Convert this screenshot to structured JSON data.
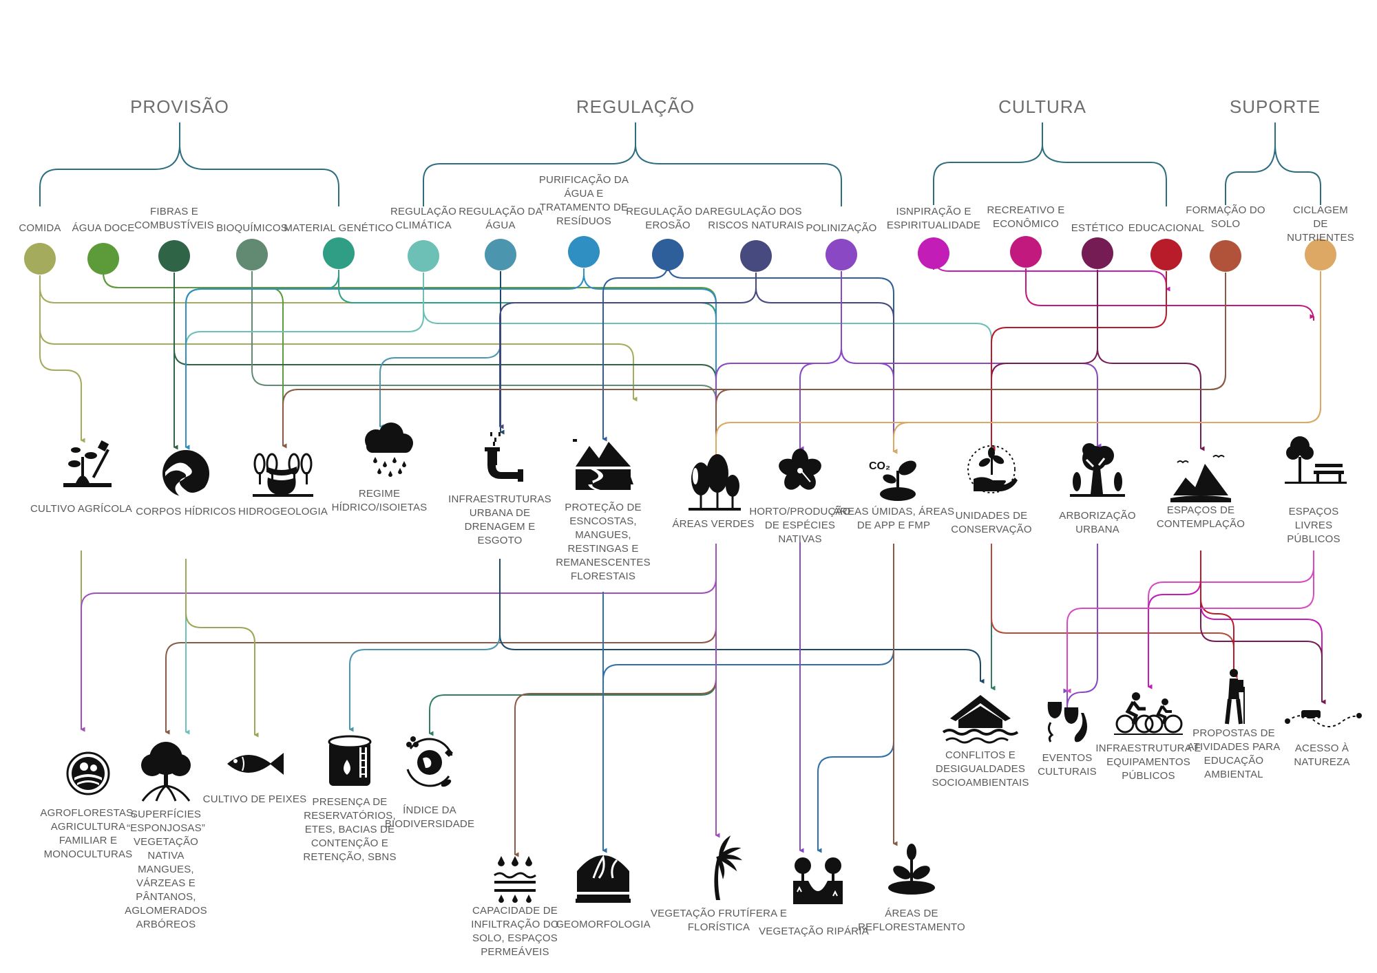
{
  "categories": {
    "provisao": "PROVISÃO",
    "regulacao": "REGULAÇÃO",
    "cultura": "CULTURA",
    "suporte": "SUPORTE"
  },
  "services": [
    {
      "id": "comida",
      "label": "COMIDA",
      "color": "#a5ab5c"
    },
    {
      "id": "agua_doce",
      "label": "ÁGUA DOCE",
      "color": "#5c9a3a"
    },
    {
      "id": "fibras",
      "label": "FIBRAS E\nCOMBUSTÍVEIS",
      "color": "#2f6447"
    },
    {
      "id": "bioquimicos",
      "label": "BIOQUÍMICOS",
      "color": "#628a73"
    },
    {
      "id": "material_genetico",
      "label": "MATERIAL GENÉTICO",
      "color": "#2f9e84"
    },
    {
      "id": "reg_climatica",
      "label": "REGULAÇÃO\nCLIMÁTICA",
      "color": "#6dc0b5"
    },
    {
      "id": "reg_agua",
      "label": "REGULAÇÃO DA\nÁGUA",
      "color": "#4b96ae"
    },
    {
      "id": "purificacao",
      "label": "PURIFICAÇÃO DA\nÁGUA E\nTRATAMENTO DE\nRESÍDUOS",
      "color": "#2f8ec2"
    },
    {
      "id": "reg_erosao",
      "label": "REGULAÇÃO DA\nEROSÃO",
      "color": "#2f5f9a"
    },
    {
      "id": "reg_riscos",
      "label": "REGULAÇÃO DOS\nRISCOS NATURAIS",
      "color": "#464a7e"
    },
    {
      "id": "polinizacao",
      "label": "POLINIZAÇÃO",
      "color": "#8a48c4"
    },
    {
      "id": "inspiracao",
      "label": "ISNPIRAÇÃO  E\nESPIRITUALIDADE",
      "color": "#c21db6"
    },
    {
      "id": "recreativo",
      "label": "RECREATIVO E\nECONÔMICO",
      "color": "#c2197f"
    },
    {
      "id": "estetico",
      "label": "ESTÉTICO",
      "color": "#761c55"
    },
    {
      "id": "educacional",
      "label": "EDUCACIONAL",
      "color": "#b81c2a"
    },
    {
      "id": "formacao_solo",
      "label": "FORMAÇÃO DO\nSOLO",
      "color": "#b1533a"
    },
    {
      "id": "ciclagem",
      "label": "CICLAGEM DE\nNUTRIENTES",
      "color": "#dca864"
    }
  ],
  "middle": [
    {
      "id": "cultivo",
      "label": "CULTIVO AGRÍCOLA",
      "icon": "plant-shovel-icon"
    },
    {
      "id": "corpos",
      "label": "CORPOS HÍDRICOS",
      "icon": "water-body-icon"
    },
    {
      "id": "hidrogeo",
      "label": "HIDROGEOLOGIA",
      "icon": "aquifer-icon"
    },
    {
      "id": "regime",
      "label": "REGIME\nHÍDRICO/ISOIETAS",
      "icon": "rain-cloud-icon"
    },
    {
      "id": "infra",
      "label": "INFRAESTRUTURAS\nURBANA DE\nDRENAGEM E\nESGOTO",
      "icon": "drain-pipe-icon"
    },
    {
      "id": "protecao",
      "label": "PROTEÇÃO DE\nESNCOSTAS,\nMANGUES,\nRESTINGAS E\nREMANESCENTES\nFLORESTAIS",
      "icon": "mountain-river-icon"
    },
    {
      "id": "areas_verdes",
      "label": "ÁREAS VERDES",
      "icon": "trees-icon"
    },
    {
      "id": "horto",
      "label": "HORTO/PRODUÇÃO\nDE ESPÉCIES\nNATIVAS",
      "icon": "hibiscus-icon"
    },
    {
      "id": "umidas",
      "label": "ÁREAS ÚMIDAS, ÁREAS\nDE APP E FMP",
      "icon": "co2-plant-icon"
    },
    {
      "id": "unidades",
      "label": "UNIDADES DE\nCONSERVAÇÃO",
      "icon": "hand-plant-icon"
    },
    {
      "id": "arborizacao",
      "label": "ARBORIZAÇÃO\nURBANA",
      "icon": "city-tree-icon"
    },
    {
      "id": "contemplacao",
      "label": "ESPAÇOS DE\nCONTEMPLAÇÃO",
      "icon": "landscape-icon"
    },
    {
      "id": "livres",
      "label": "ESPAÇOS LIVRES PÚBLICOS",
      "icon": "park-bench-icon"
    }
  ],
  "outcomes": [
    {
      "id": "agroflorestas",
      "label": "AGROFLORESTAS,\nAGRICULTURA\nFAMILIAR E\nMONOCULTURAS",
      "icon": "farm-badge-icon"
    },
    {
      "id": "superficies",
      "label": "SUPERFÍCIES\n“ESPONJOSAS”\nVEGETAÇÃO\nNATIVA\nMANGUES,\nVÁRZEAS E\nPÂNTANOS,\nAGLOMERADOS\nARBÓREOS",
      "icon": "mangrove-icon"
    },
    {
      "id": "peixes",
      "label": "CULTIVO DE PEIXES",
      "icon": "fish-icon"
    },
    {
      "id": "reservatorios",
      "label": "PRESENÇA DE\nRESERVATÓRIOS,\nETES, BACIAS DE\nCONTENÇÃO E\nRETENÇÃO, SBNS",
      "icon": "water-tank-icon"
    },
    {
      "id": "biodiversidade",
      "label": "ÍNDICE DA\nBIODIVERSIDADE",
      "icon": "biodiversity-icon"
    },
    {
      "id": "infiltracao",
      "label": "CAPACIDADE DE\nINFILTRAÇÃO DO\nSOLO, ESPAÇOS\nPERMEÁVEIS",
      "icon": "infiltration-icon"
    },
    {
      "id": "geomorfologia",
      "label": "GEOMORFOLOGIA",
      "icon": "geomorphology-icon"
    },
    {
      "id": "frutifera",
      "label": "VEGETAÇÃO FRUTÍFERA E\nFLORÍSTICA",
      "icon": "palm-tree-icon"
    },
    {
      "id": "riparia",
      "label": "VEGETAÇÃO RIPÁRIA",
      "icon": "riparian-icon"
    },
    {
      "id": "reflorestamento",
      "label": "ÁREAS DE\nREFLORESTAMENTO",
      "icon": "seedling-icon"
    },
    {
      "id": "conflitos",
      "label": "CONFLITOS E\nDESIGUALDADES\nSOCIOAMBIENTAIS",
      "icon": "flooded-house-icon"
    },
    {
      "id": "eventos",
      "label": "EVENTOS\nCULTURAIS",
      "icon": "theater-music-icon"
    },
    {
      "id": "infra_publica",
      "label": "INFRAESTRUTURA E\nEQUIPAMENTOS\nPÚBLICOS",
      "icon": "cyclists-icon"
    },
    {
      "id": "propostas",
      "label": "PROPOSTAS DE\nATIVIDADES PARA\nEDUCAÇÃO\nAMBIENTAL",
      "icon": "hiker-icon"
    },
    {
      "id": "acesso",
      "label": "ACESSO À NATUREZA",
      "icon": "bus-route-icon"
    }
  ]
}
